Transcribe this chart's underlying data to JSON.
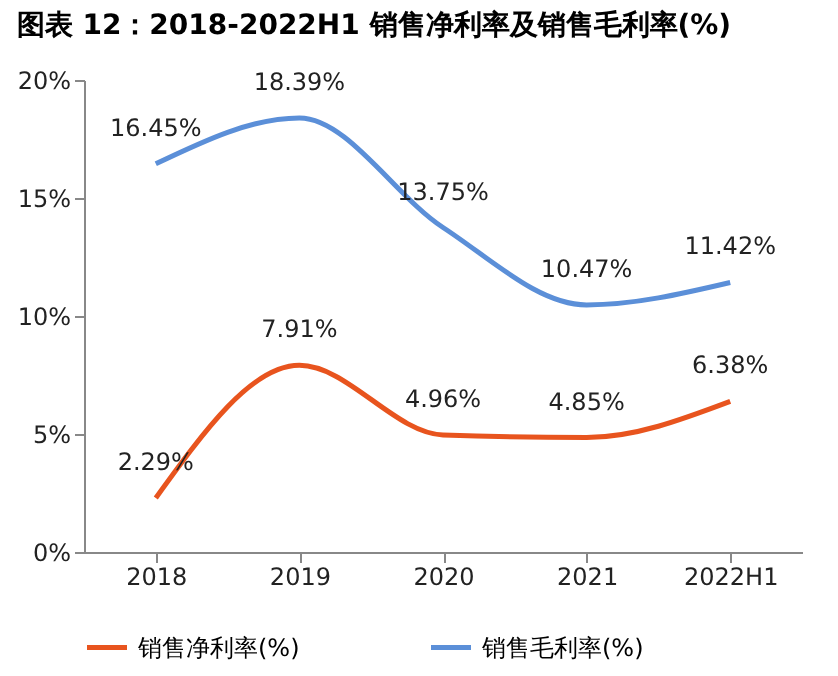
{
  "chart_data": {
    "type": "line",
    "title": "图表 12：2018-2022H1 销售净利率及销售毛利率(%)",
    "categories": [
      "2018",
      "2019",
      "2020",
      "2021",
      "2022H1"
    ],
    "series": [
      {
        "name": "销售净利率(%)",
        "color": "#e8541e",
        "values": [
          2.29,
          7.91,
          4.96,
          4.85,
          6.38
        ],
        "value_labels": [
          "2.29%",
          "7.91%",
          "4.96%",
          "4.85%",
          "6.38%"
        ]
      },
      {
        "name": "销售毛利率(%)",
        "color": "#5b8fd8",
        "values": [
          16.45,
          18.39,
          13.75,
          10.47,
          11.42
        ],
        "value_labels": [
          "16.45%",
          "18.39%",
          "13.75%",
          "10.47%",
          "11.42%"
        ]
      }
    ],
    "ylim": [
      0,
      20
    ],
    "yticks": [
      {
        "value": 0,
        "label": "0%"
      },
      {
        "value": 5,
        "label": "5%"
      },
      {
        "value": 10,
        "label": "10%"
      },
      {
        "value": 15,
        "label": "15%"
      },
      {
        "value": 20,
        "label": "20%"
      }
    ],
    "grid": false,
    "legend": "bottom",
    "marker": "none",
    "line_style": "solid"
  }
}
